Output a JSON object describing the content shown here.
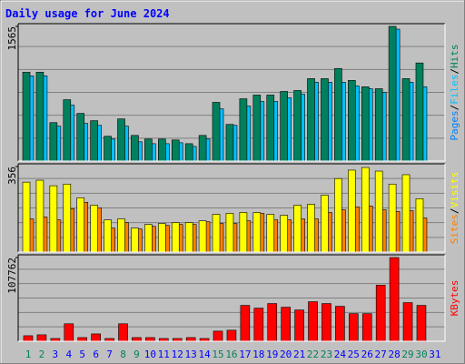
{
  "chart_data": [
    {
      "type": "bar",
      "title": "Daily usage for June 2024",
      "ylim": [
        0,
        1565
      ],
      "yticks": [
        1565
      ],
      "legend_separator": "/",
      "series": [
        {
          "name": "Pages",
          "color": "#0080ff",
          "values": [
            null,
            null,
            null,
            null,
            null,
            null,
            null,
            null,
            null,
            null,
            null,
            null,
            null,
            null,
            null,
            null,
            null,
            null,
            null,
            null,
            null,
            null,
            null,
            null,
            null,
            null,
            null,
            null,
            null,
            null,
            null
          ]
        },
        {
          "name": "Files",
          "color": "#00c0ff",
          "values": [
            990,
            990,
            405,
            650,
            437,
            415,
            256,
            405,
            224,
            202,
            202,
            213,
            170,
            256,
            607,
            415,
            639,
            692,
            692,
            735,
            777,
            916,
            916,
            916,
            873,
            841,
            799,
            1533,
            916,
            863,
            null
          ]
        },
        {
          "name": "Hits",
          "color": "#00805c",
          "values": [
            1033,
            1033,
            447,
            713,
            554,
            469,
            288,
            490,
            298,
            256,
            256,
            245,
            202,
            298,
            682,
            426,
            724,
            767,
            767,
            809,
            820,
            958,
            958,
            1076,
            937,
            863,
            841,
            1565,
            958,
            1140,
            null
          ]
        }
      ]
    },
    {
      "type": "bar",
      "ylim": [
        0,
        356
      ],
      "yticks": [
        356
      ],
      "legend_separator": "/",
      "series": [
        {
          "name": "Sites",
          "color": "#ff8000",
          "values": [
            138,
            146,
            134,
            180,
            207,
            184,
            100,
            123,
            96,
            107,
            111,
            115,
            115,
            126,
            119,
            119,
            130,
            161,
            134,
            134,
            138,
            138,
            165,
            176,
            188,
            192,
            176,
            169,
            172,
            142,
            null
          ]
        },
        {
          "name": "Visits",
          "color": "#ffff00",
          "values": [
            291,
            299,
            276,
            283,
            226,
            195,
            134,
            138,
            100,
            115,
            119,
            123,
            123,
            130,
            157,
            161,
            165,
            165,
            157,
            153,
            195,
            199,
            237,
            306,
            341,
            352,
            337,
            283,
            322,
            222,
            null
          ]
        }
      ]
    },
    {
      "type": "bar",
      "ylim": [
        0,
        107762
      ],
      "yticks": [
        107762
      ],
      "series": [
        {
          "name": "KBytes",
          "color": "#ff0000",
          "values": [
            7105,
            8288,
            3552,
            22500,
            4736,
            9472,
            3552,
            22500,
            4736,
            4736,
            3552,
            3552,
            4736,
            3552,
            13024,
            14208,
            46176,
            42624,
            48544,
            43808,
            40256,
            50912,
            48544,
            44992,
            35520,
            35520,
            72224,
            107762,
            49728,
            46176,
            null
          ]
        }
      ],
      "categories": [
        "1",
        "2",
        "3",
        "4",
        "5",
        "6",
        "7",
        "8",
        "9",
        "10",
        "11",
        "12",
        "13",
        "14",
        "15",
        "16",
        "17",
        "18",
        "19",
        "20",
        "21",
        "22",
        "23",
        "24",
        "25",
        "26",
        "27",
        "28",
        "29",
        "30",
        "31"
      ],
      "category_colors": [
        "#00805c",
        "#00805c",
        "#0000ff",
        "#0000ff",
        "#0000ff",
        "#0000ff",
        "#0000ff",
        "#00805c",
        "#00805c",
        "#0000ff",
        "#0000ff",
        "#0000ff",
        "#0000ff",
        "#0000ff",
        "#00805c",
        "#00805c",
        "#0000ff",
        "#0000ff",
        "#0000ff",
        "#0000ff",
        "#0000ff",
        "#00805c",
        "#00805c",
        "#0000ff",
        "#0000ff",
        "#0000ff",
        "#0000ff",
        "#0000ff",
        "#00805c",
        "#00805c",
        "#0000ff"
      ]
    }
  ]
}
